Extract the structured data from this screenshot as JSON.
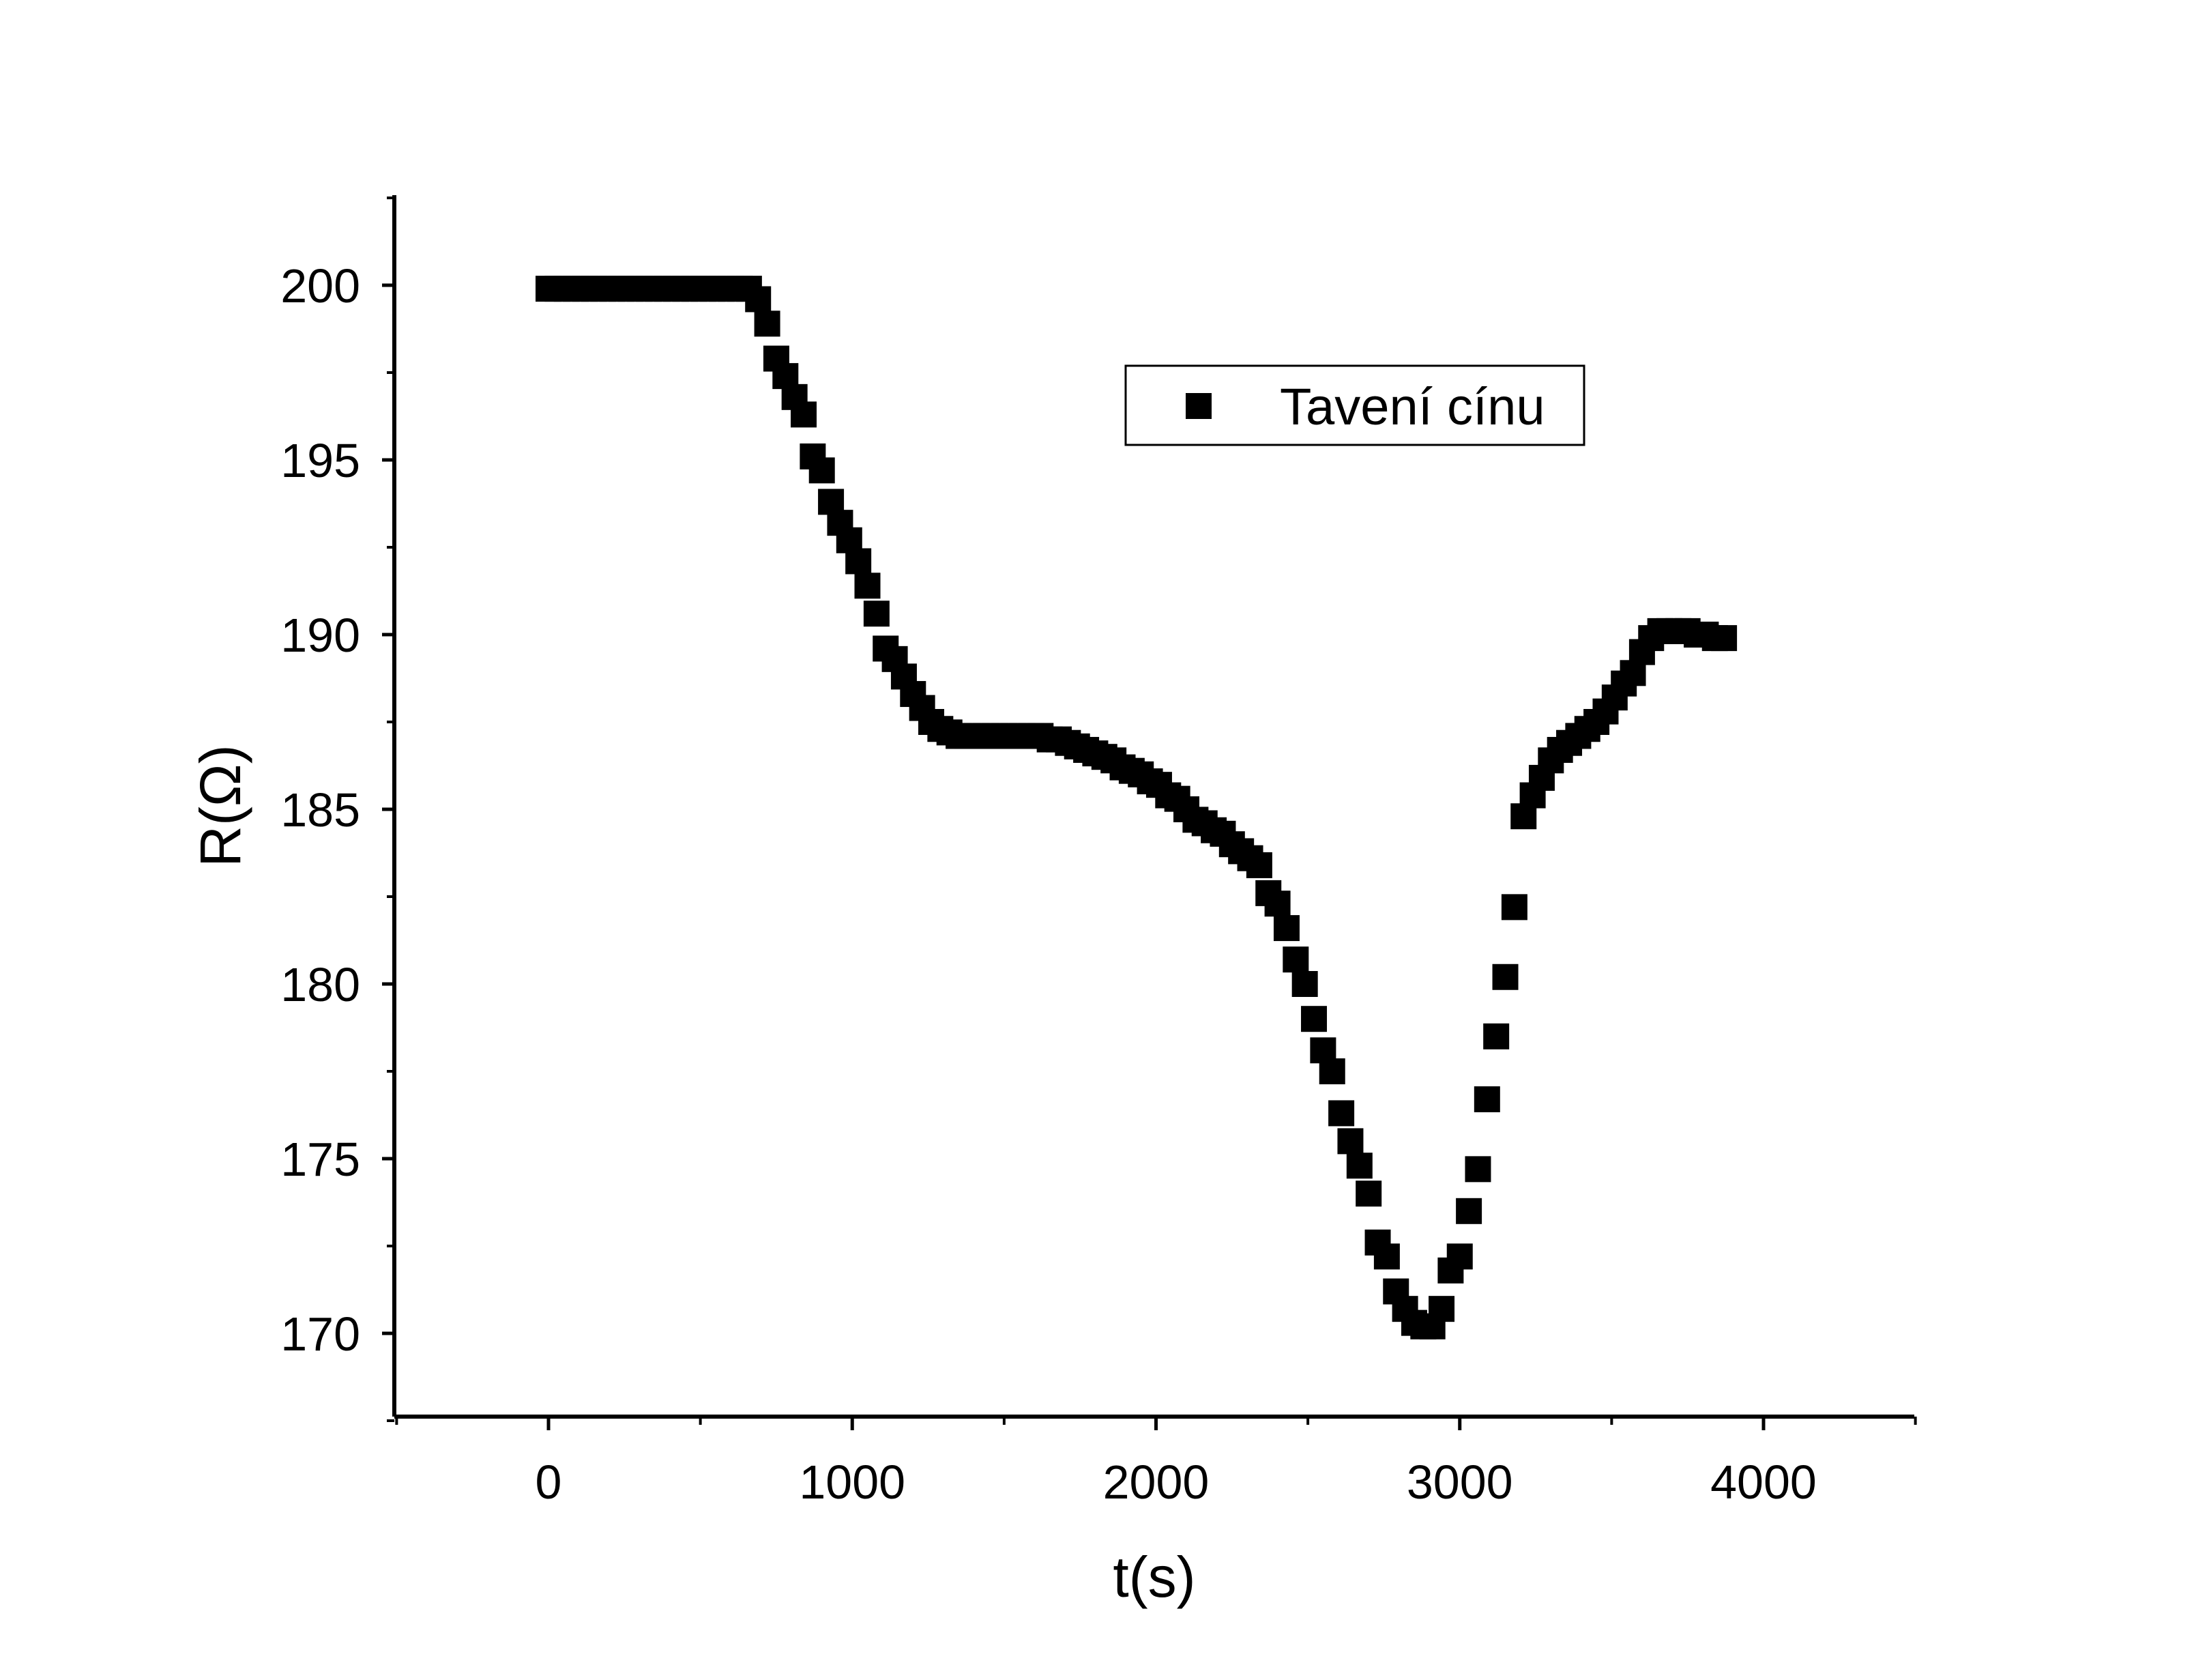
{
  "chart_data": {
    "type": "scatter",
    "title": "",
    "xlabel": "t(s)",
    "ylabel": "R(Ω)",
    "xlim": [
      -500,
      4500
    ],
    "ylim": [
      167.5,
      202.5
    ],
    "x_ticks": [
      0,
      1000,
      2000,
      3000,
      4000
    ],
    "x_tick_labels": [
      "0",
      "1000",
      "2000",
      "3000",
      "4000"
    ],
    "y_ticks": [
      170,
      175,
      180,
      185,
      190,
      195,
      200
    ],
    "y_tick_labels": [
      "170",
      "175",
      "180",
      "185",
      "190",
      "195",
      "200"
    ],
    "grid": false,
    "legend": {
      "placement": "top-right",
      "entries": [
        "Tavení cínu"
      ]
    },
    "marker": "square",
    "color": "#000000",
    "series": [
      {
        "name": "Tavení cínu",
        "x": [
          0,
          30,
          60,
          90,
          120,
          150,
          180,
          210,
          240,
          270,
          300,
          330,
          360,
          390,
          420,
          450,
          480,
          510,
          540,
          570,
          600,
          630,
          660,
          690,
          720,
          750,
          780,
          810,
          840,
          870,
          900,
          930,
          960,
          990,
          1020,
          1050,
          1080,
          1110,
          1140,
          1170,
          1200,
          1230,
          1260,
          1290,
          1320,
          1350,
          1380,
          1410,
          1440,
          1470,
          1500,
          1530,
          1560,
          1590,
          1620,
          1650,
          1680,
          1710,
          1740,
          1770,
          1800,
          1830,
          1860,
          1890,
          1920,
          1950,
          1980,
          2010,
          2040,
          2070,
          2100,
          2130,
          2160,
          2190,
          2220,
          2250,
          2280,
          2310,
          2340,
          2370,
          2400,
          2430,
          2460,
          2490,
          2520,
          2550,
          2580,
          2610,
          2640,
          2670,
          2700,
          2730,
          2760,
          2790,
          2820,
          2850,
          2880,
          2910,
          2940,
          2970,
          3000,
          3030,
          3060,
          3090,
          3120,
          3150,
          3180,
          3210,
          3240,
          3270,
          3300,
          3330,
          3360,
          3390,
          3420,
          3450,
          3480,
          3510,
          3540,
          3570,
          3600,
          3630,
          3660,
          3690,
          3720,
          3750,
          3780,
          3810,
          3840,
          3870
        ],
        "values": [
          199.9,
          199.9,
          199.9,
          199.9,
          199.9,
          199.9,
          199.9,
          199.9,
          199.9,
          199.9,
          199.9,
          199.9,
          199.9,
          199.9,
          199.9,
          199.9,
          199.9,
          199.9,
          199.9,
          199.9,
          199.9,
          199.9,
          199.9,
          199.6,
          198.9,
          197.9,
          197.4,
          196.8,
          196.3,
          195.1,
          194.7,
          193.8,
          193.2,
          192.7,
          192.1,
          191.4,
          190.6,
          189.6,
          189.3,
          188.8,
          188.3,
          187.9,
          187.5,
          187.3,
          187.2,
          187.1,
          187.1,
          187.1,
          187.1,
          187.1,
          187.1,
          187.1,
          187.1,
          187.1,
          187.1,
          187.0,
          187.0,
          186.9,
          186.8,
          186.7,
          186.6,
          186.5,
          186.4,
          186.2,
          186.1,
          186.0,
          185.8,
          185.7,
          185.4,
          185.3,
          185.0,
          184.7,
          184.6,
          184.4,
          184.3,
          184.0,
          183.8,
          183.6,
          183.4,
          182.6,
          182.3,
          181.6,
          180.7,
          180.0,
          179.0,
          178.1,
          177.5,
          176.3,
          175.5,
          174.8,
          174.0,
          172.6,
          172.2,
          171.2,
          170.7,
          170.3,
          170.2,
          170.2,
          170.7,
          171.8,
          172.2,
          173.5,
          174.7,
          176.7,
          178.5,
          180.2,
          182.2,
          184.8,
          185.4,
          185.9,
          186.4,
          186.7,
          186.9,
          187.1,
          187.3,
          187.5,
          187.8,
          188.2,
          188.6,
          188.9,
          189.5,
          189.9,
          190.1,
          190.1,
          190.1,
          190.1,
          190.0,
          190.0,
          189.9,
          189.9
        ]
      }
    ]
  }
}
